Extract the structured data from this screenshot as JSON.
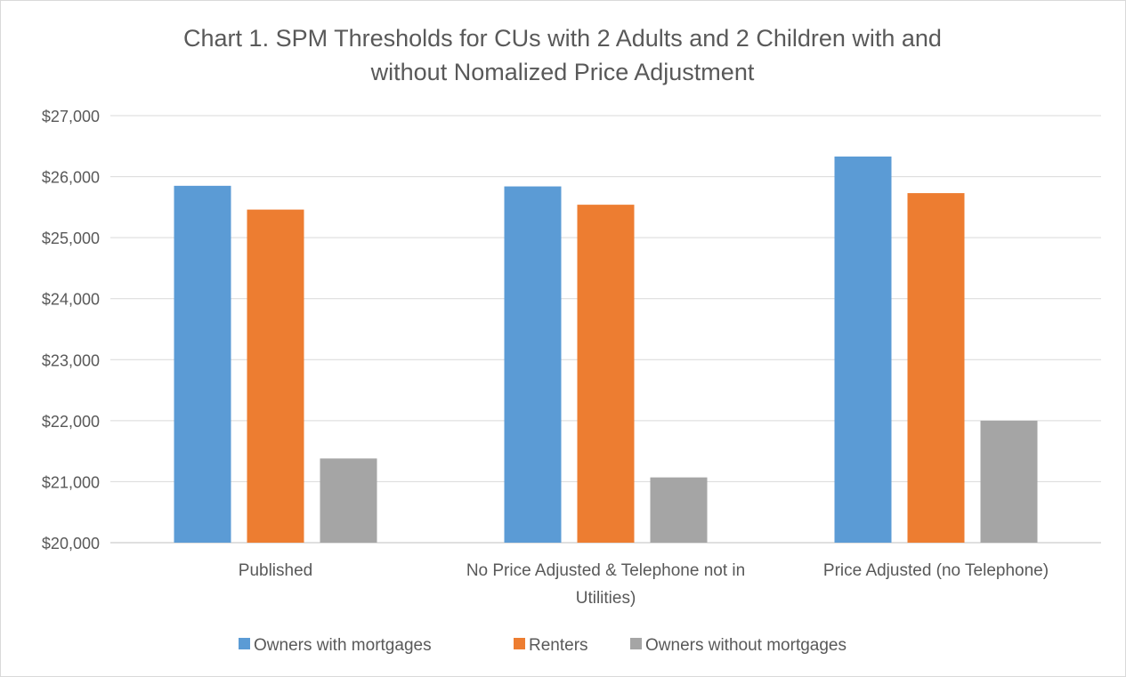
{
  "chart_data": {
    "type": "bar",
    "title": "Chart 1. SPM Thresholds for CUs with 2 Adults and 2 Children with and without Nomalized Price Adjustment",
    "title_lines": [
      "Chart 1. SPM Thresholds for CUs with 2 Adults and 2 Children with and",
      "without Nomalized Price Adjustment"
    ],
    "categories": [
      "Published",
      "No Price Adjusted & Telephone not in Utilities)",
      "Price Adjusted (no Telephone)"
    ],
    "category_label_lines": [
      [
        "Published"
      ],
      [
        "No Price Adjusted & Telephone not in",
        "Utilities)"
      ],
      [
        "Price Adjusted (no Telephone)"
      ]
    ],
    "series": [
      {
        "name": "Owners with mortgages",
        "color": "#5b9bd5",
        "values": [
          25850,
          25840,
          26330
        ]
      },
      {
        "name": "Renters",
        "color": "#ed7d31",
        "values": [
          25460,
          25540,
          25730
        ]
      },
      {
        "name": "Owners without mortgages",
        "color": "#a5a5a5",
        "values": [
          21380,
          21070,
          22000
        ]
      }
    ],
    "ylim": [
      20000,
      27000
    ],
    "yticks": [
      20000,
      21000,
      22000,
      23000,
      24000,
      25000,
      26000,
      27000
    ],
    "ytick_labels": [
      "$20,000",
      "$21,000",
      "$22,000",
      "$23,000",
      "$24,000",
      "$25,000",
      "$26,000",
      "$27,000"
    ],
    "xlabel": "",
    "ylabel": "",
    "grid": true,
    "legend_position": "bottom"
  }
}
